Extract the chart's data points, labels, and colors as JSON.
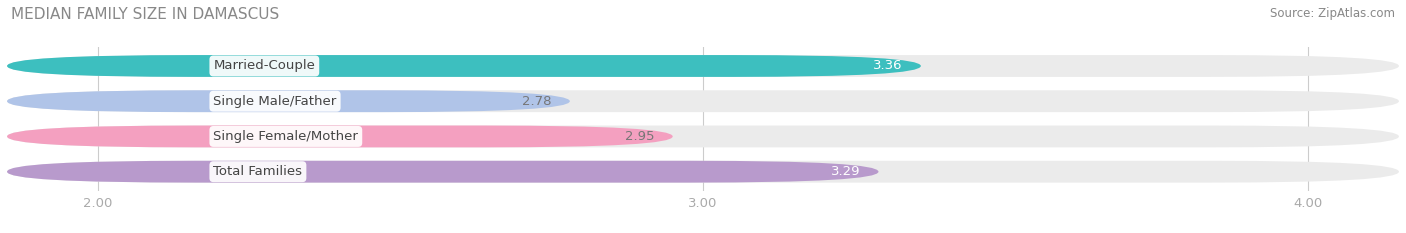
{
  "title": "MEDIAN FAMILY SIZE IN DAMASCUS",
  "source": "Source: ZipAtlas.com",
  "categories": [
    "Married-Couple",
    "Single Male/Father",
    "Single Female/Mother",
    "Total Families"
  ],
  "values": [
    3.36,
    2.78,
    2.95,
    3.29
  ],
  "bar_colors": [
    "#3dbfbf",
    "#b0c4e8",
    "#f4a0c0",
    "#b89acc"
  ],
  "bar_bg_colors": [
    "#ebebeb",
    "#ebebeb",
    "#ebebeb",
    "#ebebeb"
  ],
  "value_text_colors": [
    "white",
    "#777777",
    "#777777",
    "white"
  ],
  "xmin": 1.85,
  "xmax": 4.15,
  "xticks": [
    2.0,
    3.0,
    4.0
  ],
  "label_fontsize": 9.5,
  "value_fontsize": 9.5,
  "title_fontsize": 11,
  "source_fontsize": 8.5,
  "bar_height": 0.62,
  "background_color": "#ffffff",
  "title_color": "#888888",
  "source_color": "#888888",
  "tick_color": "#aaaaaa",
  "grid_color": "#cccccc"
}
